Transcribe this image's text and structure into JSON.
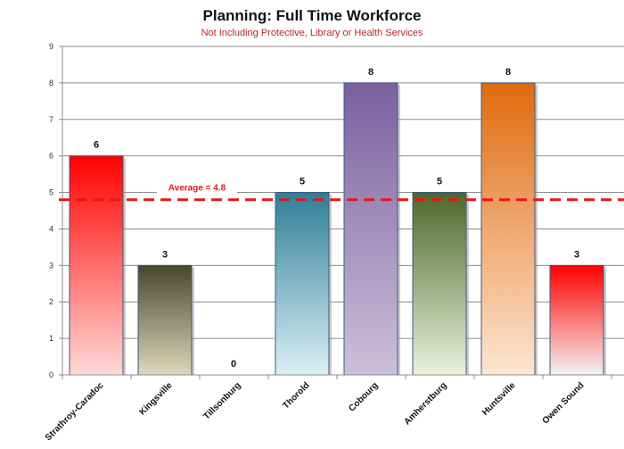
{
  "chart_data": {
    "type": "bar",
    "title": "Planning: Full Time Workforce",
    "subtitle": "Not Including Protective, Library or Health Services",
    "categories": [
      "Strathroy-Caradoc",
      "Kingsville",
      "Tillsonburg",
      "Thorold",
      "Cobourg",
      "Amherstburg",
      "Huntsville",
      "Owen Sound"
    ],
    "values": [
      6,
      3,
      0,
      5,
      8,
      5,
      8,
      3
    ],
    "ylim": [
      0,
      9
    ],
    "yticks": [
      0,
      1,
      2,
      3,
      4,
      5,
      6,
      7,
      8,
      9
    ],
    "grid": true,
    "average": {
      "value": 4.8,
      "label": "Average = 4.8",
      "color": "#e8141b"
    },
    "bar_colors": [
      [
        "#ff0000",
        "#ffd8d8"
      ],
      [
        "#47472c",
        "#dcd8bc"
      ],
      [
        "#888888",
        "#eeeeee"
      ],
      [
        "#2f7f97",
        "#dbeff5"
      ],
      [
        "#7a619f",
        "#ccc0da"
      ],
      [
        "#4d682c",
        "#eaf2dc"
      ],
      [
        "#e06a0e",
        "#fde6d2"
      ],
      [
        "#ff0000",
        "#f2f2f2"
      ]
    ]
  }
}
